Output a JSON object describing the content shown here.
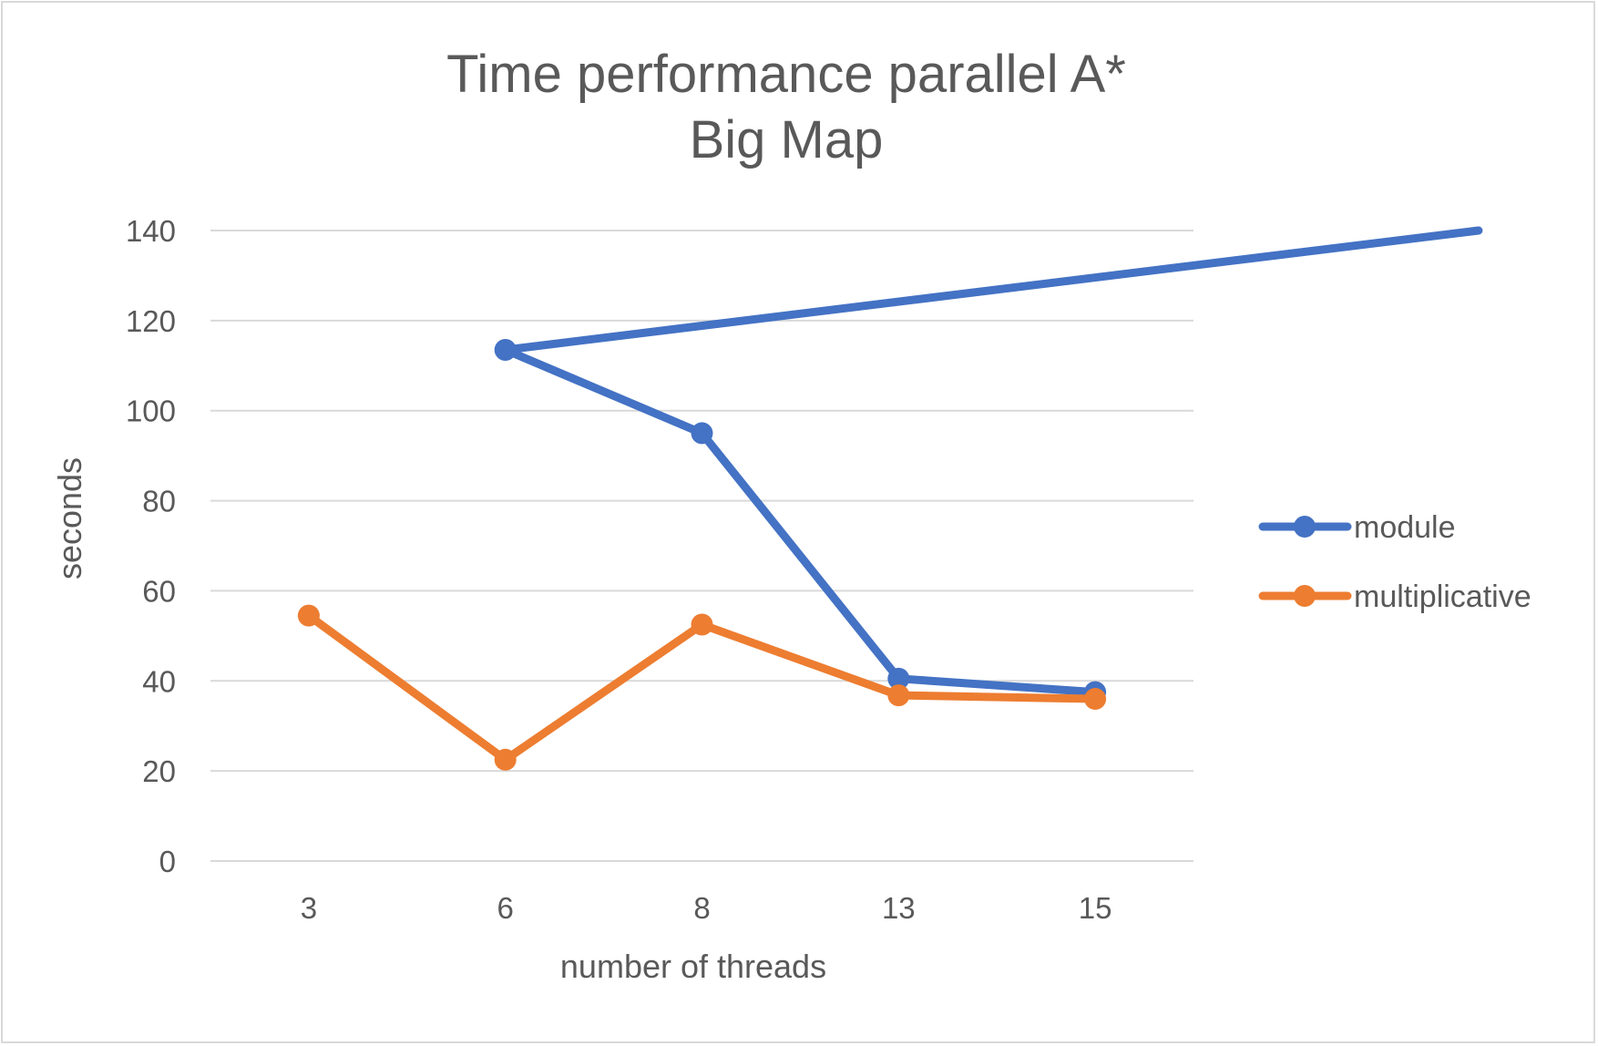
{
  "chart_data": {
    "type": "line",
    "title": [
      "Time performance parallel A*",
      "Big Map"
    ],
    "xlabel": "number of threads",
    "ylabel": "seconds",
    "categories": [
      "3",
      "6",
      "8",
      "13",
      "15"
    ],
    "ylim": [
      0,
      140
    ],
    "yticks": [
      0,
      20,
      40,
      60,
      80,
      100,
      120,
      140
    ],
    "grid": true,
    "legend_position": "right",
    "series": [
      {
        "name": "module",
        "color": "#4472C4",
        "values": [
          null,
          113.5,
          95,
          40.5,
          37.5
        ],
        "extends_above_axis_from": [
          5.95,
          140
        ]
      },
      {
        "name": "multiplicative",
        "color": "#ED7D31",
        "values": [
          54.5,
          22.5,
          52.5,
          36.8,
          36
        ]
      }
    ]
  }
}
